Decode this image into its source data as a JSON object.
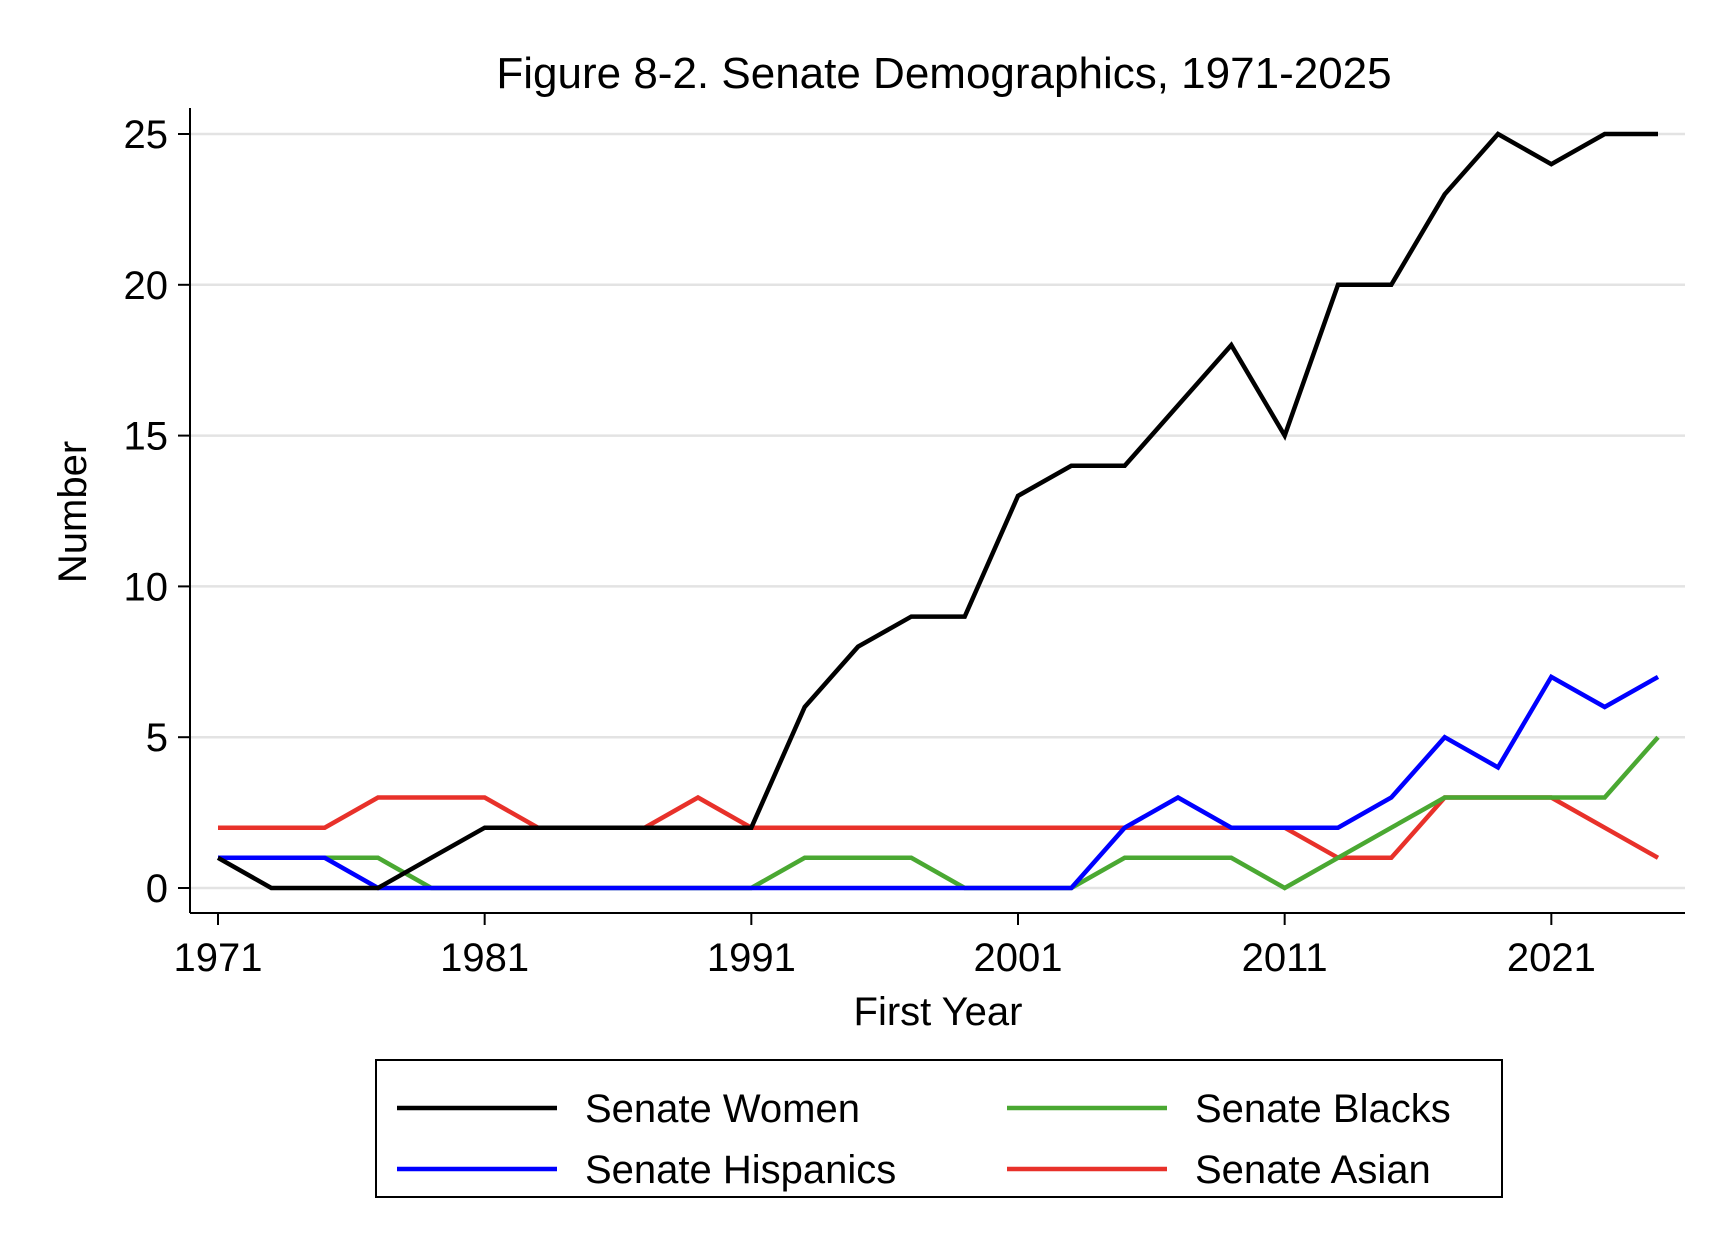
{
  "chart_data": {
    "type": "line",
    "title": "Figure 8-2. Senate Demographics, 1971-2025",
    "xlabel": "First Year",
    "ylabel": "Number",
    "xlim": [
      1971,
      2025
    ],
    "ylim": [
      0,
      25
    ],
    "xticks": [
      1971,
      1981,
      1991,
      2001,
      2011,
      2021
    ],
    "yticks": [
      0,
      5,
      10,
      15,
      20,
      25
    ],
    "grid": "horizontal",
    "legend_position": "bottom",
    "x": [
      1971,
      1973,
      1975,
      1977,
      1979,
      1981,
      1983,
      1985,
      1987,
      1989,
      1991,
      1993,
      1995,
      1997,
      1999,
      2001,
      2003,
      2005,
      2007,
      2009,
      2011,
      2013,
      2015,
      2017,
      2019,
      2021,
      2023,
      2025
    ],
    "series": [
      {
        "name": "Senate Women",
        "color": "#000000",
        "values": [
          1,
          0,
          0,
          0,
          1,
          2,
          2,
          2,
          2,
          2,
          2,
          6,
          8,
          9,
          9,
          13,
          14,
          14,
          16,
          18,
          15,
          20,
          20,
          23,
          25,
          24,
          25,
          25
        ]
      },
      {
        "name": "Senate Blacks",
        "color": "#4aa832",
        "values": [
          1,
          1,
          1,
          1,
          0,
          0,
          0,
          0,
          0,
          0,
          0,
          1,
          1,
          1,
          0,
          0,
          0,
          1,
          1,
          1,
          0,
          1,
          2,
          3,
          3,
          3,
          3,
          5
        ]
      },
      {
        "name": "Senate Hispanics",
        "color": "#0000ff",
        "values": [
          1,
          1,
          1,
          0,
          0,
          0,
          0,
          0,
          0,
          0,
          0,
          0,
          0,
          0,
          0,
          0,
          0,
          2,
          3,
          2,
          2,
          2,
          3,
          5,
          4,
          7,
          6,
          7
        ]
      },
      {
        "name": "Senate Asian",
        "color": "#e8312a",
        "values": [
          2,
          2,
          2,
          3,
          3,
          3,
          2,
          2,
          2,
          3,
          2,
          2,
          2,
          2,
          2,
          2,
          2,
          2,
          2,
          2,
          2,
          1,
          1,
          3,
          3,
          3,
          2,
          1
        ]
      }
    ],
    "legend_order": [
      0,
      1,
      2,
      3
    ]
  }
}
